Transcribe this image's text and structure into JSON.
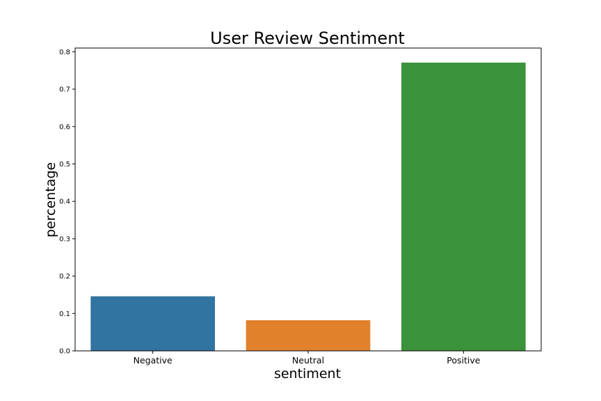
{
  "chart_data": {
    "type": "bar",
    "title": "User Review Sentiment",
    "xlabel": "sentiment",
    "ylabel": "percentage",
    "categories": [
      "Negative",
      "Neutral",
      "Positive"
    ],
    "values": [
      0.146,
      0.082,
      0.771
    ],
    "colors": [
      "#3274a1",
      "#e1812c",
      "#3a923a"
    ],
    "ylim": [
      0,
      0.81
    ],
    "yticks": [
      "0.0",
      "0.1",
      "0.2",
      "0.3",
      "0.4",
      "0.5",
      "0.6",
      "0.7",
      "0.8"
    ],
    "grid": false,
    "legend": "none"
  }
}
